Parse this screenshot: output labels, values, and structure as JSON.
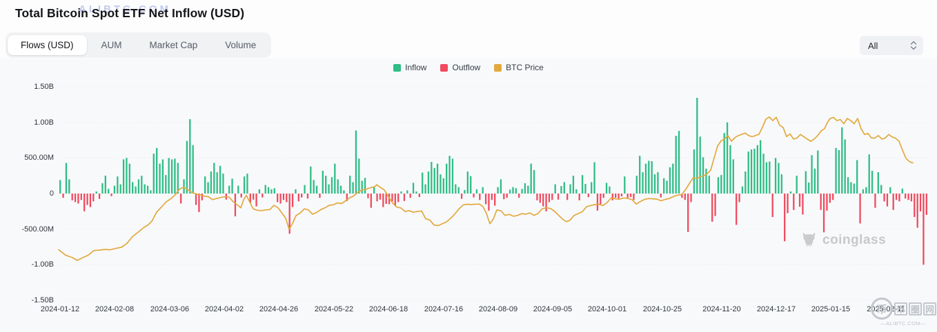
{
  "header": {
    "title": "Total Bitcoin Spot ETF Net Inflow (USD)",
    "watermark": "ALIBTC.COM"
  },
  "tabs": [
    {
      "label": "Flows (USD)",
      "active": true
    },
    {
      "label": "AUM",
      "active": false
    },
    {
      "label": "Market Cap",
      "active": false
    },
    {
      "label": "Volume",
      "active": false
    }
  ],
  "range_selector": {
    "value": "All"
  },
  "legend": [
    {
      "label": "Inflow",
      "color": "#2ebd85"
    },
    {
      "label": "Outflow",
      "color": "#f04a5e"
    },
    {
      "label": "BTC Price",
      "color": "#e2a93d"
    }
  ],
  "watermarks": {
    "chart_logo_text": "coinglass",
    "site_cn": "币圈网",
    "site_cn_chars": [
      "币",
      "圈",
      "网"
    ],
    "site_en": "—ALIBTC.COM—"
  },
  "chart_data": {
    "type": "bar+line",
    "title": "Total Bitcoin Spot ETF Net Inflow (USD)",
    "unit": "USD (M = millions, B = billions)",
    "ylim": [
      -1500,
      1500
    ],
    "grid": "horizontal-dotted",
    "legend_position": "top-center",
    "y_ticks": [
      {
        "label": "1.50B",
        "value": 1500
      },
      {
        "label": "1.00B",
        "value": 1000
      },
      {
        "label": "500.00M",
        "value": 500
      },
      {
        "label": "0",
        "value": 0
      },
      {
        "label": "-500.00M",
        "value": -500
      },
      {
        "label": "-1.00B",
        "value": -1000
      },
      {
        "label": "-1.50B",
        "value": -1500
      }
    ],
    "x_ticks": [
      "2024-01-12",
      "2024-02-08",
      "2024-03-06",
      "2024-04-02",
      "2024-04-26",
      "2024-05-22",
      "2024-06-18",
      "2024-07-16",
      "2024-08-09",
      "2024-09-05",
      "2024-10-01",
      "2024-10-25",
      "2024-11-20",
      "2024-12-17",
      "2025-01-15",
      "2025-02-11"
    ],
    "series": [
      {
        "name": "Net Flow (daily bars, M USD, green=inflow red=outflow)",
        "type": "bar",
        "values": [
          190,
          -60,
          430,
          200,
          -95,
          -120,
          -140,
          -90,
          -250,
          -160,
          -190,
          -110,
          30,
          -75,
          145,
          251,
          66,
          -36,
          110,
          240,
          130,
          480,
          500,
          420,
          160,
          100,
          200,
          250,
          130,
          110,
          45,
          560,
          640,
          420,
          480,
          260,
          500,
          480,
          490,
          430,
          -140,
          200,
          740,
          1045,
          680,
          -160,
          -260,
          -95,
          240,
          160,
          310,
          430,
          300,
          390,
          280,
          -85,
          110,
          210,
          -320,
          110,
          -55,
          240,
          280,
          -130,
          -85,
          -180,
          60,
          -55,
          120,
          90,
          60,
          75,
          -120,
          -140,
          -90,
          -120,
          -565,
          -190,
          60,
          -110,
          -55,
          120,
          -70,
          380,
          190,
          110,
          -60,
          320,
          250,
          130,
          230,
          420,
          200,
          110,
          45,
          -105,
          250,
          160,
          886,
          490,
          180,
          220,
          -65,
          -200,
          100,
          -110,
          -85,
          -190,
          -145,
          -150,
          -110,
          -175,
          -120,
          30,
          -105,
          45,
          -60,
          150,
          30,
          -50,
          295,
          130,
          310,
          445,
          360,
          420,
          270,
          215,
          420,
          530,
          490,
          130,
          90,
          -75,
          50,
          310,
          245,
          -55,
          60,
          -90,
          90,
          -150,
          -240,
          -90,
          -170,
          90,
          200,
          -80,
          -60,
          55,
          90,
          75,
          -60,
          65,
          145,
          110,
          420,
          330,
          -95,
          -130,
          -180,
          -250,
          -120,
          -90,
          130,
          -85,
          105,
          160,
          -90,
          130,
          250,
          60,
          -95,
          260,
          135,
          -50,
          160,
          440,
          -240,
          -150,
          -60,
          150,
          100,
          -95,
          -60,
          -70,
          -40,
          240,
          -60,
          -50,
          -90,
          250,
          530,
          300,
          420,
          460,
          455,
          270,
          300,
          -55,
          215,
          180,
          370,
          420,
          810,
          880,
          -60,
          -90,
          -540,
          -120,
          620,
          1345,
          800,
          510,
          350,
          250,
          -395,
          -315,
          230,
          260,
          850,
          1000,
          680,
          480,
          -440,
          -120,
          100,
          310,
          590,
          620,
          630,
          680,
          750,
          560,
          440,
          450,
          -330,
          500,
          430,
          270,
          -670,
          -275,
          30,
          -230,
          250,
          -185,
          -295,
          315,
          155,
          540,
          350,
          605,
          -230,
          -545,
          -240,
          -130,
          -90,
          640,
          610,
          930,
          760,
          230,
          160,
          140,
          470,
          -420,
          60,
          90,
          550,
          320,
          -200,
          300,
          120,
          -110,
          -180,
          90,
          -230,
          -90,
          -110,
          70,
          -70,
          -90,
          -110,
          -330,
          -480,
          -250,
          -1000,
          -300
        ]
      },
      {
        "name": "BTC Price (overlay line, value = vertical position on left axis in M)",
        "type": "line",
        "points": [
          [
            85,
            -790
          ],
          [
            95,
            -865
          ],
          [
            105,
            -900
          ],
          [
            112,
            -940
          ],
          [
            120,
            -900
          ],
          [
            128,
            -865
          ],
          [
            136,
            -800
          ],
          [
            144,
            -795
          ],
          [
            152,
            -785
          ],
          [
            160,
            -790
          ],
          [
            168,
            -770
          ],
          [
            176,
            -755
          ],
          [
            184,
            -700
          ],
          [
            192,
            -605
          ],
          [
            200,
            -545
          ],
          [
            208,
            -480
          ],
          [
            214,
            -445
          ],
          [
            220,
            -390
          ],
          [
            227,
            -260
          ],
          [
            234,
            -190
          ],
          [
            241,
            -115
          ],
          [
            248,
            -70
          ],
          [
            254,
            -15
          ],
          [
            260,
            60
          ],
          [
            266,
            90
          ],
          [
            272,
            55
          ],
          [
            278,
            15
          ],
          [
            284,
            -5
          ],
          [
            290,
            -20
          ],
          [
            296,
            -35
          ],
          [
            302,
            -45
          ],
          [
            308,
            -85
          ],
          [
            314,
            -70
          ],
          [
            320,
            -55
          ],
          [
            326,
            -45
          ],
          [
            332,
            -50
          ],
          [
            338,
            -115
          ],
          [
            344,
            -160
          ],
          [
            349,
            -200
          ],
          [
            353,
            -90
          ],
          [
            357,
            -25
          ],
          [
            362,
            -120
          ],
          [
            367,
            -215
          ],
          [
            373,
            -235
          ],
          [
            379,
            -240
          ],
          [
            385,
            -230
          ],
          [
            391,
            -225
          ],
          [
            397,
            -165
          ],
          [
            403,
            -200
          ],
          [
            409,
            -280
          ],
          [
            414,
            -345
          ],
          [
            419,
            -500
          ],
          [
            424,
            -420
          ],
          [
            429,
            -310
          ],
          [
            435,
            -275
          ],
          [
            441,
            -215
          ],
          [
            447,
            -230
          ],
          [
            453,
            -290
          ],
          [
            459,
            -265
          ],
          [
            465,
            -225
          ],
          [
            471,
            -200
          ],
          [
            477,
            -165
          ],
          [
            483,
            -158
          ],
          [
            489,
            -132
          ],
          [
            495,
            -140
          ],
          [
            501,
            -102
          ],
          [
            507,
            -58
          ],
          [
            513,
            -32
          ],
          [
            519,
            22
          ],
          [
            525,
            52
          ],
          [
            531,
            62
          ],
          [
            537,
            82
          ],
          [
            543,
            95
          ],
          [
            546,
            125
          ],
          [
            551,
            88
          ],
          [
            557,
            50
          ],
          [
            563,
            -45
          ],
          [
            569,
            -132
          ],
          [
            575,
            -190
          ],
          [
            581,
            -202
          ],
          [
            587,
            -252
          ],
          [
            593,
            -240
          ],
          [
            599,
            -262
          ],
          [
            605,
            -252
          ],
          [
            611,
            -245
          ],
          [
            617,
            -355
          ],
          [
            623,
            -372
          ],
          [
            629,
            -442
          ],
          [
            635,
            -450
          ],
          [
            641,
            -425
          ],
          [
            647,
            -398
          ],
          [
            653,
            -348
          ],
          [
            659,
            -288
          ],
          [
            665,
            -218
          ],
          [
            671,
            -162
          ],
          [
            677,
            -150
          ],
          [
            683,
            -155
          ],
          [
            689,
            -150
          ],
          [
            695,
            -148
          ],
          [
            700,
            -185
          ],
          [
            705,
            -280
          ],
          [
            710,
            -425
          ],
          [
            715,
            -358
          ],
          [
            720,
            -230
          ],
          [
            726,
            -242
          ],
          [
            732,
            -308
          ],
          [
            738,
            -292
          ],
          [
            744,
            -318
          ],
          [
            750,
            -308
          ],
          [
            756,
            -282
          ],
          [
            762,
            -290
          ],
          [
            768,
            -272
          ],
          [
            774,
            -308
          ],
          [
            780,
            -278
          ],
          [
            786,
            -212
          ],
          [
            792,
            -200
          ],
          [
            798,
            -210
          ],
          [
            804,
            -252
          ],
          [
            810,
            -310
          ],
          [
            816,
            -365
          ],
          [
            821,
            -395
          ],
          [
            826,
            -375
          ],
          [
            832,
            -308
          ],
          [
            838,
            -282
          ],
          [
            844,
            -255
          ],
          [
            850,
            -185
          ],
          [
            856,
            -168
          ],
          [
            862,
            -155
          ],
          [
            868,
            -152
          ],
          [
            874,
            -168
          ],
          [
            880,
            -125
          ],
          [
            886,
            -58
          ],
          [
            892,
            -75
          ],
          [
            898,
            -78
          ],
          [
            904,
            -62
          ],
          [
            910,
            -70
          ],
          [
            916,
            -85
          ],
          [
            922,
            -148
          ],
          [
            928,
            -112
          ],
          [
            934,
            -82
          ],
          [
            940,
            -70
          ],
          [
            946,
            -74
          ],
          [
            952,
            -78
          ],
          [
            958,
            -102
          ],
          [
            964,
            -82
          ],
          [
            970,
            -70
          ],
          [
            976,
            -42
          ],
          [
            982,
            -22
          ],
          [
            988,
            -15
          ],
          [
            994,
            60
          ],
          [
            1000,
            155
          ],
          [
            1005,
            225
          ],
          [
            1010,
            210
          ],
          [
            1015,
            238
          ],
          [
            1020,
            250
          ],
          [
            1025,
            278
          ],
          [
            1030,
            330
          ],
          [
            1035,
            500
          ],
          [
            1040,
            668
          ],
          [
            1045,
            740
          ],
          [
            1050,
            765
          ],
          [
            1055,
            815
          ],
          [
            1060,
            735
          ],
          [
            1065,
            785
          ],
          [
            1070,
            815
          ],
          [
            1075,
            830
          ],
          [
            1080,
            850
          ],
          [
            1085,
            815
          ],
          [
            1090,
            798
          ],
          [
            1095,
            815
          ],
          [
            1100,
            832
          ],
          [
            1105,
            930
          ],
          [
            1110,
            1045
          ],
          [
            1115,
            1075
          ],
          [
            1120,
            1025
          ],
          [
            1125,
            1072
          ],
          [
            1130,
            960
          ],
          [
            1135,
            928
          ],
          [
            1140,
            800
          ],
          [
            1145,
            838
          ],
          [
            1150,
            765
          ],
          [
            1155,
            780
          ],
          [
            1160,
            830
          ],
          [
            1165,
            798
          ],
          [
            1170,
            765
          ],
          [
            1175,
            735
          ],
          [
            1180,
            765
          ],
          [
            1185,
            815
          ],
          [
            1190,
            880
          ],
          [
            1195,
            912
          ],
          [
            1199,
            995
          ],
          [
            1203,
            1055
          ],
          [
            1208,
            1070
          ],
          [
            1213,
            1025
          ],
          [
            1218,
            1040
          ],
          [
            1223,
            980
          ],
          [
            1228,
            1055
          ],
          [
            1233,
            1025
          ],
          [
            1238,
            980
          ],
          [
            1243,
            1055
          ],
          [
            1248,
            910
          ],
          [
            1253,
            830
          ],
          [
            1258,
            845
          ],
          [
            1263,
            780
          ],
          [
            1268,
            780
          ],
          [
            1273,
            815
          ],
          [
            1278,
            765
          ],
          [
            1283,
            780
          ],
          [
            1288,
            830
          ],
          [
            1293,
            795
          ],
          [
            1298,
            778
          ],
          [
            1303,
            735
          ],
          [
            1308,
            610
          ],
          [
            1313,
            495
          ],
          [
            1318,
            448
          ],
          [
            1323,
            430
          ]
        ]
      }
    ],
    "colors": {
      "inflow": "#2ebd85",
      "outflow": "#f04a5e",
      "btc_price": "#e2a93d",
      "grid": "#e7e8ec"
    }
  }
}
